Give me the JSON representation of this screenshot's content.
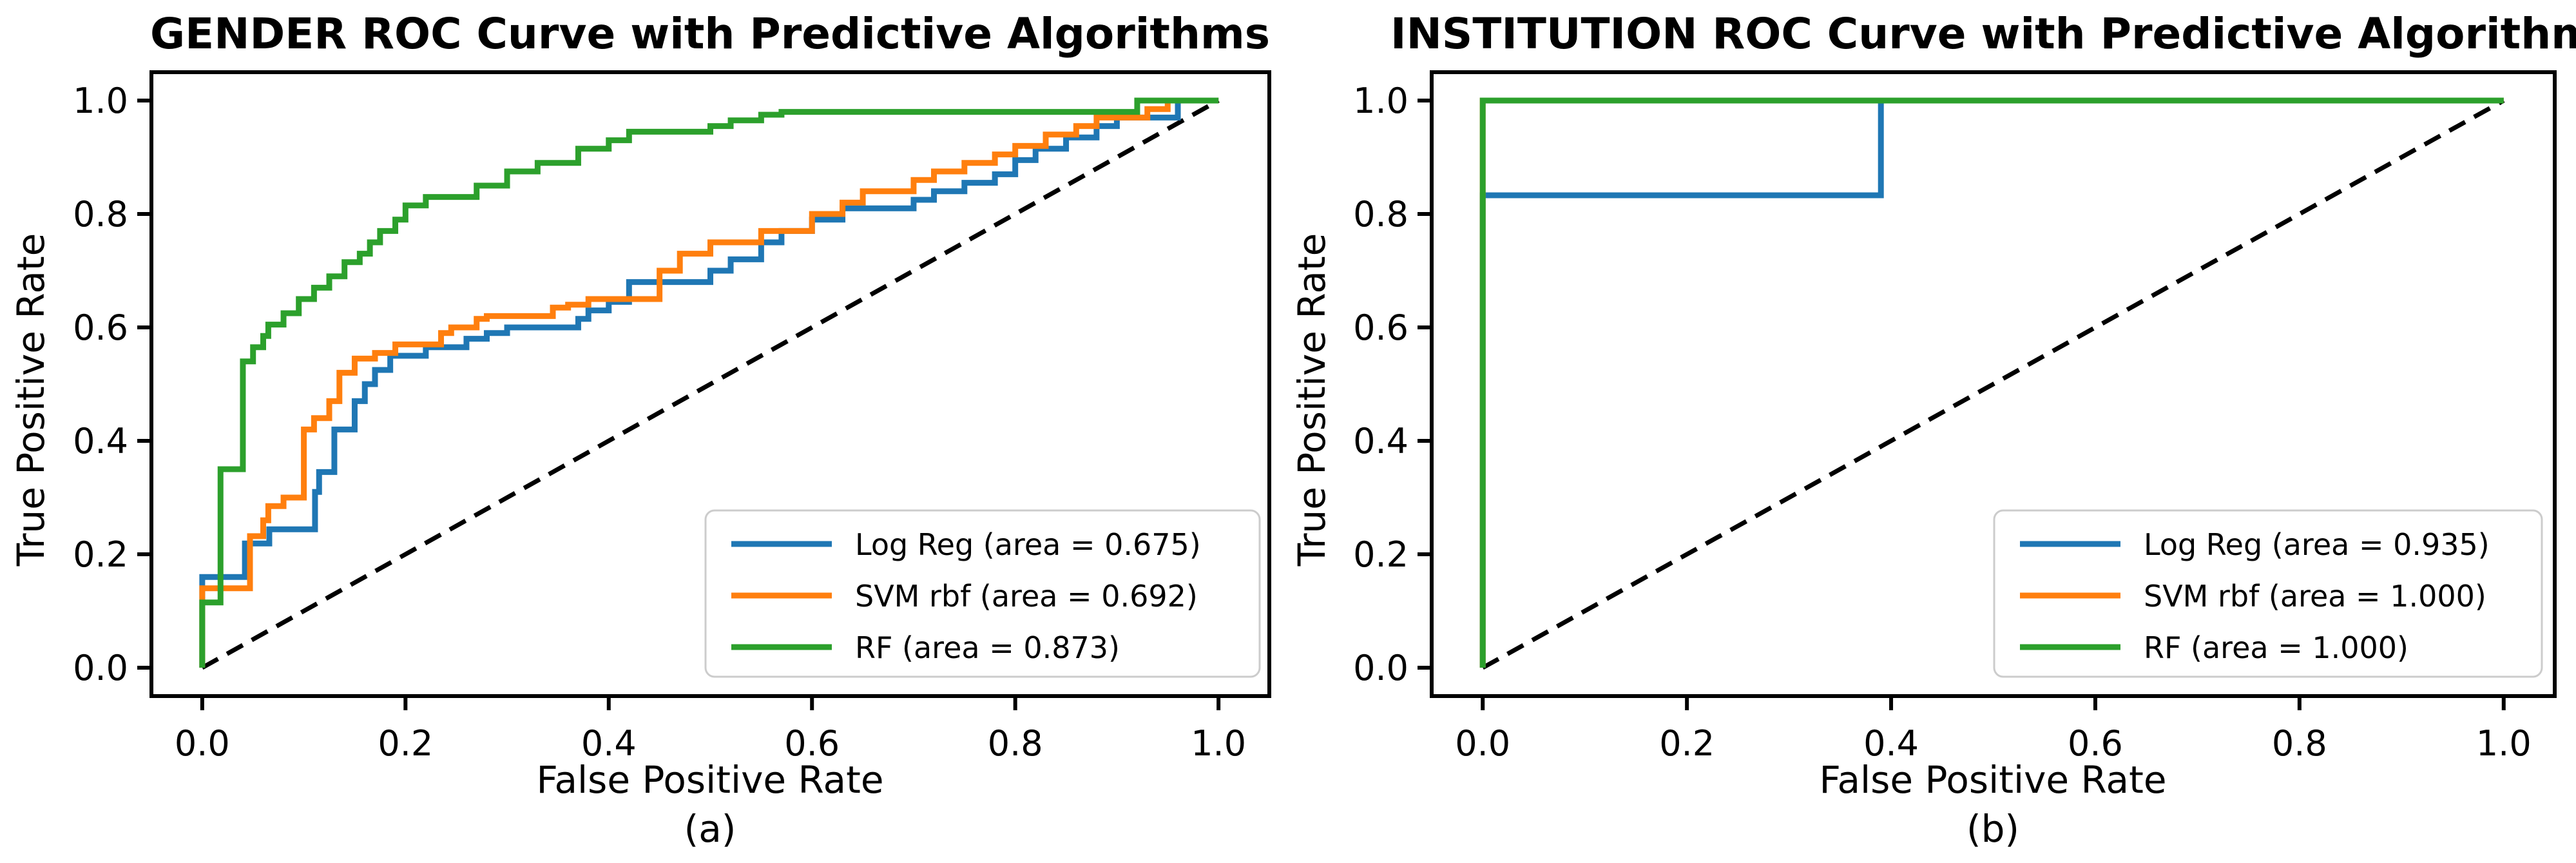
{
  "figure": {
    "background": "#ffffff",
    "text_color": "#000000",
    "legend_border_color": "#cccccc",
    "legend_background": "rgba(255,255,255,0.8)"
  },
  "colors": {
    "log_reg": "#1f77b4",
    "svm_rbf": "#ff7f0e",
    "rf": "#2ca02c",
    "diagonal": "#000000"
  },
  "chart_data": [
    {
      "type": "line",
      "title": "GENDER ROC Curve with Predictive Algorithms",
      "xlabel": "False Positive Rate",
      "ylabel": "True Positive Rate",
      "caption": "(a)",
      "xlim": [
        -0.05,
        1.05
      ],
      "ylim": [
        -0.05,
        1.05
      ],
      "grid": false,
      "legend_position": "lower right",
      "xticks": {
        "values": [
          0.0,
          0.2,
          0.4,
          0.6,
          0.8,
          1.0
        ],
        "labels": [
          "0.0",
          "0.2",
          "0.4",
          "0.6",
          "0.8",
          "1.0"
        ]
      },
      "yticks": {
        "values": [
          0.0,
          0.2,
          0.4,
          0.6,
          0.8,
          1.0
        ],
        "labels": [
          "0.0",
          "0.2",
          "0.4",
          "0.6",
          "0.8",
          "1.0"
        ]
      },
      "diagonal": {
        "key": "diagonal",
        "style": "dashed",
        "color": "#000000",
        "points": [
          [
            0,
            0
          ],
          [
            1,
            1
          ]
        ]
      },
      "series": [
        {
          "key": "log-reg",
          "name": "Log Reg (area = 0.675)",
          "auc": 0.675,
          "color": "#1f77b4",
          "points": [
            [
              0,
              0
            ],
            [
              0,
              0.16
            ],
            [
              0.042,
              0.16
            ],
            [
              0.042,
              0.219
            ],
            [
              0.066,
              0.219
            ],
            [
              0.066,
              0.244
            ],
            [
              0.111,
              0.244
            ],
            [
              0.111,
              0.31
            ],
            [
              0.115,
              0.31
            ],
            [
              0.115,
              0.345
            ],
            [
              0.13,
              0.345
            ],
            [
              0.13,
              0.42
            ],
            [
              0.15,
              0.42
            ],
            [
              0.15,
              0.47
            ],
            [
              0.16,
              0.47
            ],
            [
              0.16,
              0.5
            ],
            [
              0.17,
              0.5
            ],
            [
              0.17,
              0.525
            ],
            [
              0.185,
              0.525
            ],
            [
              0.185,
              0.55
            ],
            [
              0.22,
              0.55
            ],
            [
              0.22,
              0.565
            ],
            [
              0.26,
              0.565
            ],
            [
              0.26,
              0.58
            ],
            [
              0.28,
              0.58
            ],
            [
              0.28,
              0.59
            ],
            [
              0.3,
              0.59
            ],
            [
              0.3,
              0.6
            ],
            [
              0.37,
              0.6
            ],
            [
              0.37,
              0.615
            ],
            [
              0.38,
              0.615
            ],
            [
              0.38,
              0.63
            ],
            [
              0.4,
              0.63
            ],
            [
              0.4,
              0.645
            ],
            [
              0.42,
              0.645
            ],
            [
              0.42,
              0.68
            ],
            [
              0.5,
              0.68
            ],
            [
              0.5,
              0.7
            ],
            [
              0.52,
              0.7
            ],
            [
              0.52,
              0.72
            ],
            [
              0.55,
              0.72
            ],
            [
              0.55,
              0.75
            ],
            [
              0.57,
              0.75
            ],
            [
              0.57,
              0.77
            ],
            [
              0.6,
              0.77
            ],
            [
              0.6,
              0.79
            ],
            [
              0.63,
              0.79
            ],
            [
              0.63,
              0.81
            ],
            [
              0.7,
              0.81
            ],
            [
              0.7,
              0.825
            ],
            [
              0.72,
              0.825
            ],
            [
              0.72,
              0.84
            ],
            [
              0.75,
              0.84
            ],
            [
              0.75,
              0.855
            ],
            [
              0.78,
              0.855
            ],
            [
              0.78,
              0.87
            ],
            [
              0.8,
              0.87
            ],
            [
              0.8,
              0.895
            ],
            [
              0.82,
              0.895
            ],
            [
              0.82,
              0.915
            ],
            [
              0.85,
              0.915
            ],
            [
              0.85,
              0.935
            ],
            [
              0.88,
              0.935
            ],
            [
              0.88,
              0.955
            ],
            [
              0.9,
              0.955
            ],
            [
              0.9,
              0.97
            ],
            [
              0.96,
              0.97
            ],
            [
              0.96,
              1
            ],
            [
              1,
              1
            ]
          ]
        },
        {
          "key": "svm-rbf",
          "name": "SVM rbf (area = 0.692)",
          "auc": 0.692,
          "color": "#ff7f0e",
          "points": [
            [
              0,
              0
            ],
            [
              0,
              0.14
            ],
            [
              0.047,
              0.14
            ],
            [
              0.047,
              0.232
            ],
            [
              0.06,
              0.232
            ],
            [
              0.06,
              0.26
            ],
            [
              0.065,
              0.26
            ],
            [
              0.065,
              0.285
            ],
            [
              0.08,
              0.285
            ],
            [
              0.08,
              0.3
            ],
            [
              0.1,
              0.3
            ],
            [
              0.1,
              0.42
            ],
            [
              0.11,
              0.42
            ],
            [
              0.11,
              0.44
            ],
            [
              0.125,
              0.44
            ],
            [
              0.125,
              0.47
            ],
            [
              0.135,
              0.47
            ],
            [
              0.135,
              0.52
            ],
            [
              0.15,
              0.52
            ],
            [
              0.15,
              0.545
            ],
            [
              0.17,
              0.545
            ],
            [
              0.17,
              0.555
            ],
            [
              0.19,
              0.555
            ],
            [
              0.19,
              0.57
            ],
            [
              0.235,
              0.57
            ],
            [
              0.235,
              0.59
            ],
            [
              0.245,
              0.59
            ],
            [
              0.245,
              0.6
            ],
            [
              0.27,
              0.6
            ],
            [
              0.27,
              0.615
            ],
            [
              0.28,
              0.615
            ],
            [
              0.28,
              0.62
            ],
            [
              0.345,
              0.62
            ],
            [
              0.345,
              0.635
            ],
            [
              0.36,
              0.635
            ],
            [
              0.36,
              0.64
            ],
            [
              0.38,
              0.64
            ],
            [
              0.38,
              0.65
            ],
            [
              0.45,
              0.65
            ],
            [
              0.45,
              0.7
            ],
            [
              0.47,
              0.7
            ],
            [
              0.47,
              0.73
            ],
            [
              0.5,
              0.73
            ],
            [
              0.5,
              0.75
            ],
            [
              0.55,
              0.75
            ],
            [
              0.55,
              0.77
            ],
            [
              0.6,
              0.77
            ],
            [
              0.6,
              0.8
            ],
            [
              0.63,
              0.8
            ],
            [
              0.63,
              0.82
            ],
            [
              0.65,
              0.82
            ],
            [
              0.65,
              0.84
            ],
            [
              0.7,
              0.84
            ],
            [
              0.7,
              0.86
            ],
            [
              0.72,
              0.86
            ],
            [
              0.72,
              0.875
            ],
            [
              0.75,
              0.875
            ],
            [
              0.75,
              0.89
            ],
            [
              0.78,
              0.89
            ],
            [
              0.78,
              0.905
            ],
            [
              0.8,
              0.905
            ],
            [
              0.8,
              0.92
            ],
            [
              0.83,
              0.92
            ],
            [
              0.83,
              0.94
            ],
            [
              0.86,
              0.94
            ],
            [
              0.86,
              0.955
            ],
            [
              0.88,
              0.955
            ],
            [
              0.88,
              0.97
            ],
            [
              0.93,
              0.97
            ],
            [
              0.93,
              0.985
            ],
            [
              0.95,
              0.985
            ],
            [
              0.95,
              1
            ],
            [
              1,
              1
            ]
          ]
        },
        {
          "key": "rf",
          "name": "RF (area = 0.873)",
          "auc": 0.873,
          "color": "#2ca02c",
          "points": [
            [
              0,
              0
            ],
            [
              0,
              0.115
            ],
            [
              0.018,
              0.115
            ],
            [
              0.018,
              0.35
            ],
            [
              0.04,
              0.35
            ],
            [
              0.04,
              0.54
            ],
            [
              0.05,
              0.54
            ],
            [
              0.05,
              0.565
            ],
            [
              0.06,
              0.565
            ],
            [
              0.06,
              0.585
            ],
            [
              0.065,
              0.585
            ],
            [
              0.065,
              0.605
            ],
            [
              0.08,
              0.605
            ],
            [
              0.08,
              0.625
            ],
            [
              0.095,
              0.625
            ],
            [
              0.095,
              0.65
            ],
            [
              0.11,
              0.65
            ],
            [
              0.11,
              0.67
            ],
            [
              0.125,
              0.67
            ],
            [
              0.125,
              0.69
            ],
            [
              0.14,
              0.69
            ],
            [
              0.14,
              0.715
            ],
            [
              0.155,
              0.715
            ],
            [
              0.155,
              0.73
            ],
            [
              0.165,
              0.73
            ],
            [
              0.165,
              0.75
            ],
            [
              0.175,
              0.75
            ],
            [
              0.175,
              0.77
            ],
            [
              0.19,
              0.77
            ],
            [
              0.19,
              0.79
            ],
            [
              0.2,
              0.79
            ],
            [
              0.2,
              0.815
            ],
            [
              0.22,
              0.815
            ],
            [
              0.22,
              0.83
            ],
            [
              0.27,
              0.83
            ],
            [
              0.27,
              0.85
            ],
            [
              0.3,
              0.85
            ],
            [
              0.3,
              0.875
            ],
            [
              0.33,
              0.875
            ],
            [
              0.33,
              0.89
            ],
            [
              0.37,
              0.89
            ],
            [
              0.37,
              0.915
            ],
            [
              0.4,
              0.915
            ],
            [
              0.4,
              0.93
            ],
            [
              0.42,
              0.93
            ],
            [
              0.42,
              0.945
            ],
            [
              0.5,
              0.945
            ],
            [
              0.5,
              0.955
            ],
            [
              0.52,
              0.955
            ],
            [
              0.52,
              0.965
            ],
            [
              0.55,
              0.965
            ],
            [
              0.55,
              0.975
            ],
            [
              0.57,
              0.975
            ],
            [
              0.57,
              0.98
            ],
            [
              0.92,
              0.98
            ],
            [
              0.92,
              1
            ],
            [
              1,
              1
            ]
          ]
        }
      ]
    },
    {
      "type": "line",
      "title": "INSTITUTION ROC Curve with Predictive Algorithm",
      "xlabel": "False Positive Rate",
      "ylabel": "True Positive Rate",
      "caption": "(b)",
      "xlim": [
        -0.05,
        1.05
      ],
      "ylim": [
        -0.05,
        1.05
      ],
      "grid": false,
      "legend_position": "lower right",
      "xticks": {
        "values": [
          0.0,
          0.2,
          0.4,
          0.6,
          0.8,
          1.0
        ],
        "labels": [
          "0.0",
          "0.2",
          "0.4",
          "0.6",
          "0.8",
          "1.0"
        ]
      },
      "yticks": {
        "values": [
          0.0,
          0.2,
          0.4,
          0.6,
          0.8,
          1.0
        ],
        "labels": [
          "0.0",
          "0.2",
          "0.4",
          "0.6",
          "0.8",
          "1.0"
        ]
      },
      "diagonal": {
        "key": "diagonal",
        "style": "dashed",
        "color": "#000000",
        "points": [
          [
            0,
            0
          ],
          [
            1,
            1
          ]
        ]
      },
      "series": [
        {
          "key": "log-reg",
          "name": "Log Reg (area = 0.935)",
          "auc": 0.935,
          "color": "#1f77b4",
          "points": [
            [
              0,
              0
            ],
            [
              0,
              0.833
            ],
            [
              0.39,
              0.833
            ],
            [
              0.39,
              1
            ],
            [
              1,
              1
            ]
          ]
        },
        {
          "key": "svm-rbf",
          "name": "SVM rbf (area = 1.000)",
          "auc": 1.0,
          "color": "#ff7f0e",
          "points": [
            [
              0,
              0
            ],
            [
              0,
              1
            ],
            [
              1,
              1
            ]
          ]
        },
        {
          "key": "rf",
          "name": "RF (area = 1.000)",
          "auc": 1.0,
          "color": "#2ca02c",
          "points": [
            [
              0,
              0
            ],
            [
              0,
              1
            ],
            [
              1,
              1
            ]
          ]
        }
      ]
    }
  ]
}
